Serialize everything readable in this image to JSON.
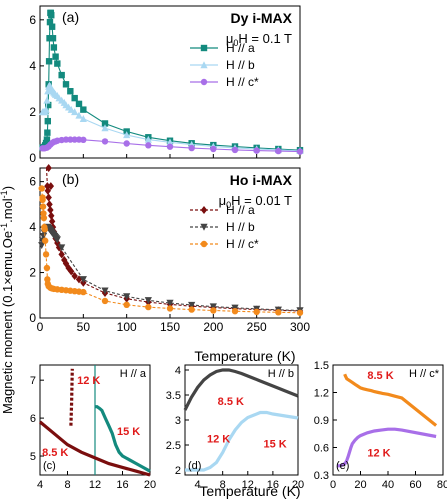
{
  "figure": {
    "ylabel_main": "Magnetic moment (0.1×emu.Oe",
    "ylabel_sup1": "-1",
    "ylabel_mid": ".mol",
    "ylabel_sup2": "-1",
    "ylabel_end": ")",
    "xlabel_main": "Temperature (K)",
    "xlabel_bottom": "Temperature (K)"
  },
  "chart_data": [
    {
      "id": "a",
      "type": "line",
      "panel_label": "(a)",
      "title": "Dy i-MAX",
      "field_prefix": "μ",
      "field_sub": "0",
      "field_suffix": "H = 0.1 T",
      "xlim": [
        0,
        300
      ],
      "ylim": [
        0,
        6.6
      ],
      "yticks": [
        0,
        2,
        4,
        6
      ],
      "legend_placement": "center",
      "series": [
        {
          "name": "H // a",
          "color": "#138a7e",
          "marker": "square",
          "x": [
            8,
            8.5,
            9,
            9.5,
            10,
            10.5,
            11,
            11.5,
            12,
            12.5,
            13,
            14,
            15,
            16,
            18,
            20,
            25,
            30,
            35,
            40,
            45,
            50,
            75,
            100,
            125,
            150,
            175,
            200,
            225,
            250,
            275,
            300
          ],
          "y": [
            0.8,
            1.1,
            1.6,
            2.3,
            3.2,
            4.2,
            5.2,
            5.9,
            6.3,
            6.3,
            6.2,
            5.7,
            5.2,
            4.8,
            4.4,
            4.1,
            3.6,
            3.2,
            2.9,
            2.6,
            2.35,
            2.1,
            1.5,
            1.15,
            0.9,
            0.75,
            0.64,
            0.56,
            0.5,
            0.44,
            0.39,
            0.34
          ],
          "scatter_x": [
            3,
            4,
            5,
            6,
            7
          ],
          "scatter_y": [
            0.45,
            0.45,
            0.48,
            0.55,
            0.65
          ]
        },
        {
          "name": "H // b",
          "color": "#a9d8f2",
          "marker": "triangle",
          "x": [
            3,
            4,
            5,
            6,
            7,
            8,
            9,
            10,
            11,
            12,
            13,
            14,
            15,
            16,
            17,
            18,
            20,
            22,
            25,
            28,
            30,
            33,
            36,
            40,
            45,
            50,
            75,
            100,
            125,
            150,
            175,
            200,
            225,
            250,
            275,
            300
          ],
          "y": [
            2.0,
            2.0,
            2.0,
            2.0,
            2.1,
            2.5,
            2.9,
            3.1,
            3.15,
            3.1,
            3.0,
            2.95,
            2.9,
            2.85,
            2.8,
            2.75,
            2.7,
            2.6,
            2.5,
            2.4,
            2.3,
            2.2,
            2.1,
            2.0,
            1.85,
            1.7,
            1.3,
            1.0,
            0.8,
            0.68,
            0.58,
            0.5,
            0.44,
            0.39,
            0.35,
            0.31
          ]
        },
        {
          "name": "H // c*",
          "color": "#a86fe8",
          "marker": "circle",
          "x": [
            3,
            5,
            8,
            10,
            12,
            14,
            16,
            18,
            20,
            25,
            30,
            35,
            40,
            45,
            50,
            75,
            100,
            125,
            150,
            175,
            200,
            225,
            250,
            275,
            300
          ],
          "y": [
            0.42,
            0.42,
            0.45,
            0.5,
            0.58,
            0.65,
            0.7,
            0.72,
            0.75,
            0.78,
            0.8,
            0.8,
            0.8,
            0.8,
            0.79,
            0.72,
            0.63,
            0.55,
            0.49,
            0.43,
            0.39,
            0.35,
            0.32,
            0.3,
            0.28
          ]
        }
      ]
    },
    {
      "id": "b",
      "type": "line",
      "panel_label": "(b)",
      "title": "Ho i-MAX",
      "field_prefix": "μ",
      "field_sub": "0",
      "field_suffix": "H = 0.01 T",
      "xlim": [
        0,
        300
      ],
      "ylim": [
        0,
        6.6
      ],
      "yticks": [
        0,
        2,
        4,
        6
      ],
      "xticks": [
        0,
        50,
        100,
        150,
        200,
        250,
        300
      ],
      "xlabel": "Temperature (K)",
      "legend_placement": "center",
      "series": [
        {
          "name": "H // a",
          "color": "#7a0e0e",
          "marker": "diamond",
          "x": [
            8.5,
            9,
            10,
            11,
            12,
            13,
            14,
            15,
            16,
            18,
            20,
            22,
            25,
            28,
            30,
            33,
            36,
            40,
            45,
            50,
            75,
            100,
            125,
            150,
            175,
            200,
            225,
            250,
            275,
            300
          ],
          "y": [
            5.8,
            5.6,
            5.3,
            5.0,
            4.75,
            4.5,
            4.25,
            4.0,
            3.8,
            3.5,
            3.3,
            3.1,
            2.8,
            2.55,
            2.4,
            2.2,
            2.05,
            1.85,
            1.7,
            1.55,
            1.1,
            0.85,
            0.7,
            0.6,
            0.52,
            0.46,
            0.41,
            0.37,
            0.34,
            0.31
          ],
          "dashed_x": [
            7.5,
            8.5
          ],
          "dashed_y": [
            6.6,
            5.8
          ],
          "extra_x": [
            10,
            12.5
          ],
          "extra_y": [
            6.6,
            5.8
          ]
        },
        {
          "name": "H // b",
          "color": "#444444",
          "marker": "triangle-down",
          "x": [
            2,
            3,
            4,
            5,
            6,
            7,
            8,
            9,
            10,
            11,
            12,
            13,
            14,
            15,
            16,
            17,
            18,
            19,
            20,
            25,
            50,
            75,
            100,
            125,
            150,
            175,
            200,
            225,
            250,
            275,
            300
          ],
          "y": [
            3.2,
            3.4,
            3.6,
            3.75,
            3.85,
            3.95,
            4.0,
            4.0,
            3.95,
            3.9,
            3.85,
            3.8,
            3.75,
            3.7,
            3.65,
            3.6,
            3.55,
            3.5,
            3.45,
            3.1,
            1.7,
            1.2,
            0.95,
            0.78,
            0.66,
            0.57,
            0.5,
            0.45,
            0.4,
            0.36,
            0.33
          ]
        },
        {
          "name": "H // c*",
          "color": "#f28a1c",
          "marker": "circle",
          "x": [
            2,
            3,
            4,
            5,
            6,
            7,
            8,
            8.5,
            9,
            10,
            12,
            14,
            16,
            20,
            25,
            30,
            35,
            40,
            45,
            50,
            75,
            100,
            125,
            150,
            175,
            200,
            225,
            250,
            275,
            300
          ],
          "y": [
            5.7,
            5.2,
            4.6,
            4.0,
            3.4,
            2.8,
            2.2,
            1.7,
            1.5,
            1.4,
            1.33,
            1.3,
            1.28,
            1.26,
            1.24,
            1.22,
            1.2,
            1.18,
            1.16,
            1.14,
            0.75,
            0.58,
            0.48,
            0.42,
            0.37,
            0.33,
            0.3,
            0.27,
            0.25,
            0.23
          ],
          "scatter_x": [
            3,
            3.5,
            4.5,
            5.5
          ],
          "scatter_y": [
            5.3,
            4.9,
            4.4,
            3.9
          ]
        }
      ]
    },
    {
      "id": "c",
      "type": "line",
      "panel_label": "(c)",
      "legend_text": "H // a",
      "xlim": [
        4,
        20
      ],
      "ylim": [
        4.5,
        7.4
      ],
      "xticks": [
        4,
        8,
        12,
        16,
        20
      ],
      "yticks": [
        5,
        6,
        7
      ],
      "ref_x": 12,
      "series": [
        {
          "name": "Dy a",
          "color": "#138a7e",
          "x": [
            12,
            12.3,
            12.7,
            13,
            13.5,
            14,
            14.5,
            15,
            15.5,
            16,
            17,
            18,
            19,
            20
          ],
          "y": [
            6.3,
            6.3,
            6.25,
            6.2,
            6.0,
            5.8,
            5.6,
            5.3,
            5.1,
            5.0,
            4.9,
            4.8,
            4.7,
            4.6
          ]
        },
        {
          "name": "Ho a",
          "color": "#7a0e0e",
          "x": [
            4,
            6,
            8,
            10,
            12,
            14,
            16,
            18,
            20
          ],
          "y": [
            5.9,
            5.6,
            5.3,
            5.1,
            4.95,
            4.8,
            4.7,
            4.6,
            4.5
          ]
        },
        {
          "name": "Ho a jump",
          "color": "#7a0e0e",
          "dashed": true,
          "x": [
            8.5,
            8.6,
            8.7
          ],
          "y": [
            5.8,
            6.4,
            7.3
          ]
        }
      ],
      "annotations": [
        {
          "text": "12 K",
          "x": 9.4,
          "y": 6.9
        },
        {
          "text": "15 K",
          "x": 15.2,
          "y": 5.55
        },
        {
          "text": "8.5 K",
          "x": 4.3,
          "y": 5.0
        }
      ]
    },
    {
      "id": "d",
      "type": "line",
      "panel_label": "(d)",
      "legend_text": "H // b",
      "xlim": [
        2,
        20
      ],
      "ylim": [
        1.9,
        4.1
      ],
      "xticks": [
        4,
        8,
        12,
        16,
        20
      ],
      "yticks": [
        2.0,
        2.5,
        3.0,
        3.5,
        4.0
      ],
      "series": [
        {
          "name": "Ho b",
          "color": "#444444",
          "x": [
            2,
            3,
            4,
            5,
            6,
            7,
            8,
            9,
            10,
            11,
            12,
            13,
            14,
            15,
            16,
            17,
            18,
            19,
            20
          ],
          "y": [
            3.2,
            3.45,
            3.65,
            3.8,
            3.9,
            3.97,
            4.0,
            4.0,
            3.97,
            3.93,
            3.88,
            3.83,
            3.78,
            3.73,
            3.68,
            3.63,
            3.58,
            3.53,
            3.48
          ]
        },
        {
          "name": "Dy b",
          "color": "#a9d8f2",
          "x": [
            2,
            3,
            4,
            5,
            6,
            7,
            8,
            9,
            10,
            11,
            12,
            13,
            14,
            15,
            16,
            17,
            18,
            19,
            20
          ],
          "y": [
            2.0,
            2.0,
            2.0,
            2.0,
            2.05,
            2.15,
            2.35,
            2.6,
            2.8,
            2.95,
            3.05,
            3.1,
            3.15,
            3.15,
            3.12,
            3.1,
            3.08,
            3.06,
            3.04
          ]
        }
      ],
      "annotations": [
        {
          "text": "8.5 K",
          "x": 7.2,
          "y": 3.3
        },
        {
          "text": "12 K",
          "x": 5.5,
          "y": 2.55
        },
        {
          "text": "15 K",
          "x": 14.5,
          "y": 2.45
        }
      ]
    },
    {
      "id": "e",
      "type": "line",
      "panel_label": "(e)",
      "legend_text": "H // c*",
      "xlim": [
        0,
        80
      ],
      "ylim": [
        0.3,
        1.5
      ],
      "xticks": [
        0,
        20,
        40,
        60,
        80
      ],
      "yticks": [
        0.3,
        0.6,
        0.9,
        1.2,
        1.5
      ],
      "series": [
        {
          "name": "Ho c*",
          "color": "#f28a1c",
          "x": [
            8.5,
            9,
            10,
            12,
            14,
            16,
            18,
            20,
            22,
            25,
            28,
            30,
            33,
            36,
            40,
            45,
            50,
            75
          ],
          "y": [
            1.4,
            1.38,
            1.35,
            1.33,
            1.31,
            1.29,
            1.27,
            1.25,
            1.24,
            1.23,
            1.22,
            1.21,
            1.2,
            1.19,
            1.18,
            1.16,
            1.14,
            0.84
          ]
        },
        {
          "name": "Dy c*",
          "color": "#a86fe8",
          "x": [
            3,
            5,
            7,
            9,
            10,
            11,
            12,
            13,
            14,
            16,
            18,
            20,
            25,
            30,
            35,
            40,
            45,
            50,
            75
          ],
          "y": [
            0.4,
            0.4,
            0.41,
            0.43,
            0.46,
            0.5,
            0.55,
            0.6,
            0.64,
            0.68,
            0.71,
            0.73,
            0.76,
            0.78,
            0.79,
            0.8,
            0.8,
            0.79,
            0.72
          ]
        }
      ],
      "annotations": [
        {
          "text": "8.5 K",
          "x": 25,
          "y": 1.35
        },
        {
          "text": "12 K",
          "x": 25,
          "y": 0.5
        }
      ]
    }
  ]
}
